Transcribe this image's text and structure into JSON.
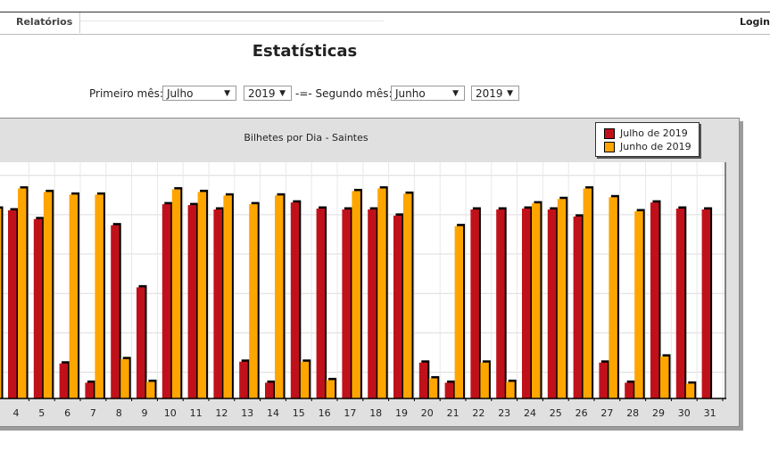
{
  "topbar": {
    "reports_label": "Relatórios",
    "login_label": "Login"
  },
  "page": {
    "title": "Estatísticas"
  },
  "filters": {
    "first_label": "Primeiro mês:",
    "first_month": "Julho",
    "first_year": "2019",
    "separator": "-=- Segundo mês:",
    "second_month": "Junho",
    "second_year": "2019"
  },
  "colors": {
    "series1": "#c0111a",
    "series2": "#ffa500"
  },
  "chart_data": {
    "type": "bar",
    "title": "Bilhetes por Dia - Saintes",
    "legend_position": "top-right",
    "grid": true,
    "ylim": [
      0,
      270
    ],
    "categories": [
      "4",
      "5",
      "6",
      "7",
      "8",
      "9",
      "10",
      "11",
      "12",
      "13",
      "14",
      "15",
      "16",
      "17",
      "18",
      "19",
      "20",
      "21",
      "22",
      "23",
      "24",
      "25",
      "26",
      "27",
      "28",
      "29",
      "30",
      "31"
    ],
    "series": [
      {
        "name": "Julho de 2019",
        "values": [
          215,
          205,
          40,
          18,
          198,
          127,
          222,
          221,
          216,
          42,
          18,
          224,
          217,
          216,
          216,
          209,
          41,
          18,
          216,
          216,
          217,
          216,
          208,
          41,
          18,
          224,
          217,
          216
        ]
      },
      {
        "name": "Junho de 2019",
        "values": [
          240,
          236,
          233,
          233,
          45,
          19,
          239,
          236,
          232,
          222,
          232,
          42,
          21,
          237,
          240,
          234,
          23,
          197,
          41,
          19,
          223,
          228,
          240,
          230,
          214,
          48,
          17,
          null
        ]
      }
    ]
  }
}
